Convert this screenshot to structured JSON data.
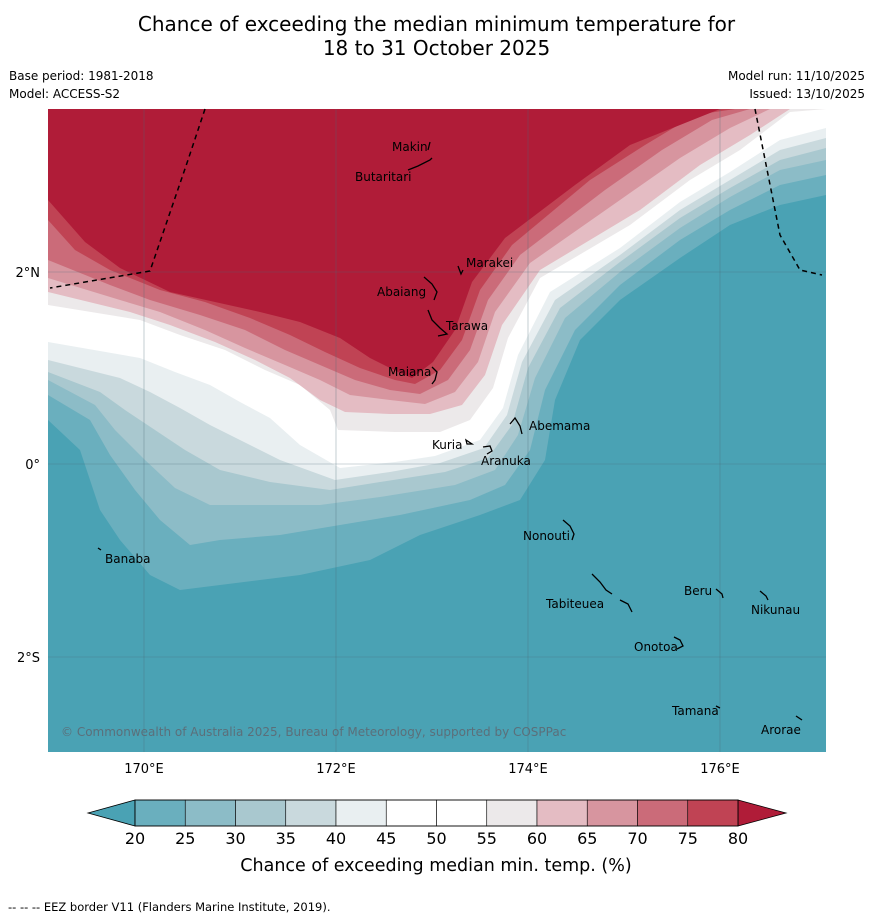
{
  "title": {
    "line1": "Chance of exceeding the median minimum temperature for",
    "line2": "18 to 31 October 2025"
  },
  "meta": {
    "base_period": "Base period: 1981-2018",
    "model": "Model: ACCESS-S2",
    "model_run": "Model run: 11/10/2025",
    "issued": "Issued: 13/10/2025"
  },
  "axes": {
    "lat_labels": [
      "2°N",
      "0°",
      "2°S"
    ],
    "lon_labels": [
      "170°E",
      "172°E",
      "174°E",
      "176°E"
    ]
  },
  "places": [
    "Makin",
    "Butaritari",
    "Marakei",
    "Abaiang",
    "Tarawa",
    "Maiana",
    "Abemama",
    "Kuria",
    "Aranuka",
    "Banaba",
    "Nonouti",
    "Beru",
    "Nikunau",
    "Tabiteuea",
    "Onotoa",
    "Tamana",
    "Arorae"
  ],
  "copyright": "© Commonwealth of Australia 2025, Bureau of Meteorology, supported by COSPPac",
  "colorbar": {
    "ticks": [
      "20",
      "25",
      "30",
      "35",
      "40",
      "45",
      "50",
      "55",
      "60",
      "65",
      "70",
      "75",
      "80"
    ],
    "label": "Chance of exceeding median min. temp. (%)",
    "colors": {
      "below20": "#4aa2b4",
      "20-25": "#6aafbe",
      "25-30": "#8cbcc7",
      "30-35": "#a9c8cf",
      "35-40": "#c9d9dd",
      "40-45": "#e9eff1",
      "45-50": "#ffffff",
      "50-55": "#ffffff",
      "55-60": "#ece9ea",
      "60-65": "#e4bcc3",
      "65-70": "#d7959f",
      "70-75": "#cb6b79",
      "75-80": "#c04354",
      "above80": "#b01c38"
    }
  },
  "eez_credit": "-- -- -- EEZ border V11 (Flanders Marine Institute, 2019)."
}
